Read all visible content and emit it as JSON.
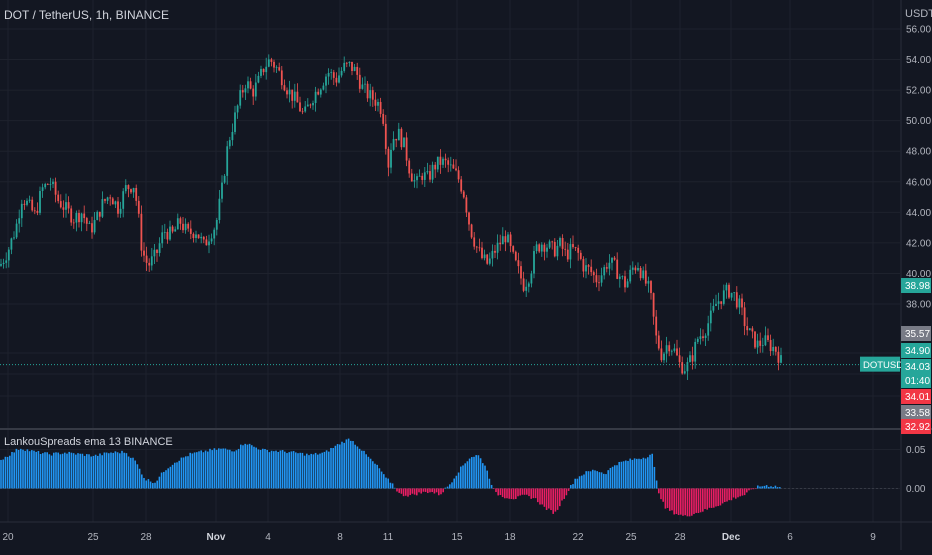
{
  "header": {
    "symbol_title": "DOT / TetherUS, 1h, BINANCE",
    "currency": "USDT"
  },
  "indicator": {
    "title": "LankouSpreads ema 13 BINANCE"
  },
  "colors": {
    "background": "#131722",
    "grid": "#1e222d",
    "up_candle": "#26a69a",
    "down_candle": "#ef5350",
    "bar_positive": "#2196f3",
    "bar_negative": "#e91e63",
    "axis_text": "#b2b5be",
    "label_teal": "#26a69a",
    "label_gray": "#787b86",
    "label_red": "#f23645"
  },
  "chart_data": [
    {
      "type": "candlestick",
      "title": "DOT / TetherUS, 1h, BINANCE",
      "ylim": [
        31.0,
        56.5
      ],
      "y_ticks": [
        56.0,
        54.0,
        52.0,
        50.0,
        48.0,
        46.0,
        44.0,
        42.0,
        40.0,
        38.0
      ],
      "x_ticks": [
        "20",
        "25",
        "28",
        "Nov",
        "4",
        "8",
        "11",
        "15",
        "18",
        "22",
        "25",
        "28",
        "Dec",
        "6",
        "9"
      ],
      "x_positions": [
        8,
        93,
        146,
        216,
        268,
        340,
        388,
        457,
        510,
        578,
        631,
        680,
        731,
        790,
        873
      ],
      "last_price_line": 34.03,
      "price_labels": [
        {
          "text": "38.98",
          "style": "teal"
        },
        {
          "text": "35.57",
          "style": "gray"
        },
        {
          "text": "34.90",
          "style": "teal"
        },
        {
          "text": "DOTUSDT",
          "style": "teal"
        },
        {
          "text": "34.03",
          "style": "teal"
        },
        {
          "text": "01:40",
          "style": "teal"
        },
        {
          "text": "34.01",
          "style": "red"
        },
        {
          "text": "33.58",
          "style": "gray"
        },
        {
          "text": "32.92",
          "style": "red"
        }
      ],
      "series": [
        {
          "x": [
            0,
            8,
            16,
            22,
            28,
            35,
            42,
            50,
            58,
            66,
            74,
            82,
            90,
            96,
            102,
            110,
            118,
            126,
            134,
            138,
            142,
            148,
            156,
            164,
            172,
            180,
            188,
            196,
            204,
            210,
            216,
            222,
            228,
            234,
            240,
            246,
            252,
            258,
            264,
            270,
            276,
            282,
            288,
            296,
            304,
            312,
            320,
            328,
            336,
            344,
            350,
            356,
            362,
            368,
            374,
            380,
            384,
            388,
            392,
            398,
            404,
            410,
            416,
            422,
            428,
            434,
            440,
            446,
            452,
            458,
            464,
            470,
            476,
            482,
            488,
            494,
            500,
            506,
            512,
            518,
            524,
            530,
            536,
            542,
            548,
            554,
            560,
            566,
            572,
            578,
            584,
            590,
            596,
            602,
            608,
            614,
            620,
            626,
            632,
            638,
            644,
            650,
            656,
            662,
            668,
            674,
            680,
            686,
            692,
            698,
            704,
            710,
            716,
            722,
            728,
            734,
            740,
            746,
            752,
            758,
            764,
            770,
            776,
            782
          ],
          "values": [
            40.5,
            41.5,
            43.0,
            45.0,
            44.5,
            43.8,
            45.5,
            46.0,
            44.8,
            44.2,
            43.6,
            44.0,
            42.8,
            43.5,
            44.5,
            45.2,
            44.3,
            45.6,
            45.8,
            44.0,
            41.5,
            40.5,
            41.2,
            42.8,
            42.5,
            43.4,
            42.6,
            42.8,
            41.8,
            42.6,
            43.2,
            45.5,
            48.5,
            50.0,
            51.5,
            52.6,
            51.8,
            52.5,
            53.5,
            54.0,
            53.5,
            52.8,
            52.0,
            51.3,
            50.3,
            51.5,
            52.3,
            53.2,
            52.7,
            53.5,
            53.6,
            53.2,
            52.2,
            51.7,
            51.4,
            51.0,
            50.0,
            47.0,
            48.8,
            49.2,
            48.4,
            46.7,
            45.8,
            46.5,
            46.2,
            47.0,
            47.3,
            47.2,
            46.8,
            46.3,
            45.2,
            43.0,
            41.8,
            41.0,
            40.6,
            41.4,
            42.0,
            42.5,
            41.2,
            40.2,
            39.2,
            40.0,
            41.6,
            42.0,
            41.8,
            41.5,
            41.9,
            41.2,
            41.6,
            41.3,
            40.4,
            40.2,
            39.6,
            40.0,
            40.8,
            40.5,
            39.8,
            39.2,
            40.3,
            40.6,
            39.6,
            38.8,
            35.8,
            34.6,
            35.5,
            35.0,
            34.0,
            33.8,
            34.5,
            35.8,
            36.2,
            37.0,
            38.0,
            38.5,
            38.9,
            38.6,
            37.8,
            36.5,
            35.8,
            35.3,
            35.6,
            35.3,
            35.0,
            34.1
          ]
        }
      ]
    },
    {
      "type": "bar",
      "title": "LankouSpreads ema 13 BINANCE",
      "y_ticks": [
        0.05,
        0.0
      ],
      "ylim": [
        -0.038,
        0.07
      ],
      "series": [
        {
          "name": "LankouSpreads ema 13",
          "x": [
            0,
            20,
            35,
            50,
            65,
            80,
            95,
            110,
            125,
            135,
            145,
            155,
            165,
            175,
            190,
            205,
            220,
            235,
            245,
            255,
            265,
            280,
            295,
            310,
            325,
            340,
            350,
            360,
            370,
            380,
            385,
            392,
            400,
            410,
            420,
            430,
            440,
            450,
            460,
            470,
            478,
            485,
            495,
            505,
            515,
            525,
            535,
            545,
            555,
            565,
            575,
            585,
            595,
            605,
            615,
            625,
            635,
            645,
            652,
            658,
            665,
            675,
            685,
            695,
            705,
            715,
            725,
            735,
            745,
            755,
            765,
            775,
            782
          ],
          "values": [
            0.036,
            0.052,
            0.047,
            0.044,
            0.046,
            0.044,
            0.042,
            0.046,
            0.047,
            0.036,
            0.012,
            0.008,
            0.024,
            0.034,
            0.044,
            0.048,
            0.051,
            0.049,
            0.059,
            0.053,
            0.049,
            0.048,
            0.046,
            0.043,
            0.046,
            0.058,
            0.064,
            0.052,
            0.038,
            0.025,
            0.014,
            0.007,
            -0.008,
            -0.009,
            -0.006,
            -0.004,
            -0.008,
            0.006,
            0.025,
            0.04,
            0.043,
            0.03,
            -0.006,
            -0.011,
            -0.013,
            -0.009,
            -0.013,
            -0.025,
            -0.032,
            -0.01,
            0.012,
            0.02,
            0.024,
            0.019,
            0.031,
            0.035,
            0.038,
            0.04,
            0.045,
            -0.002,
            -0.025,
            -0.032,
            -0.036,
            -0.032,
            -0.028,
            -0.023,
            -0.018,
            -0.012,
            -0.008,
            0.001,
            0.004,
            0.003,
            0.001
          ]
        }
      ]
    }
  ]
}
